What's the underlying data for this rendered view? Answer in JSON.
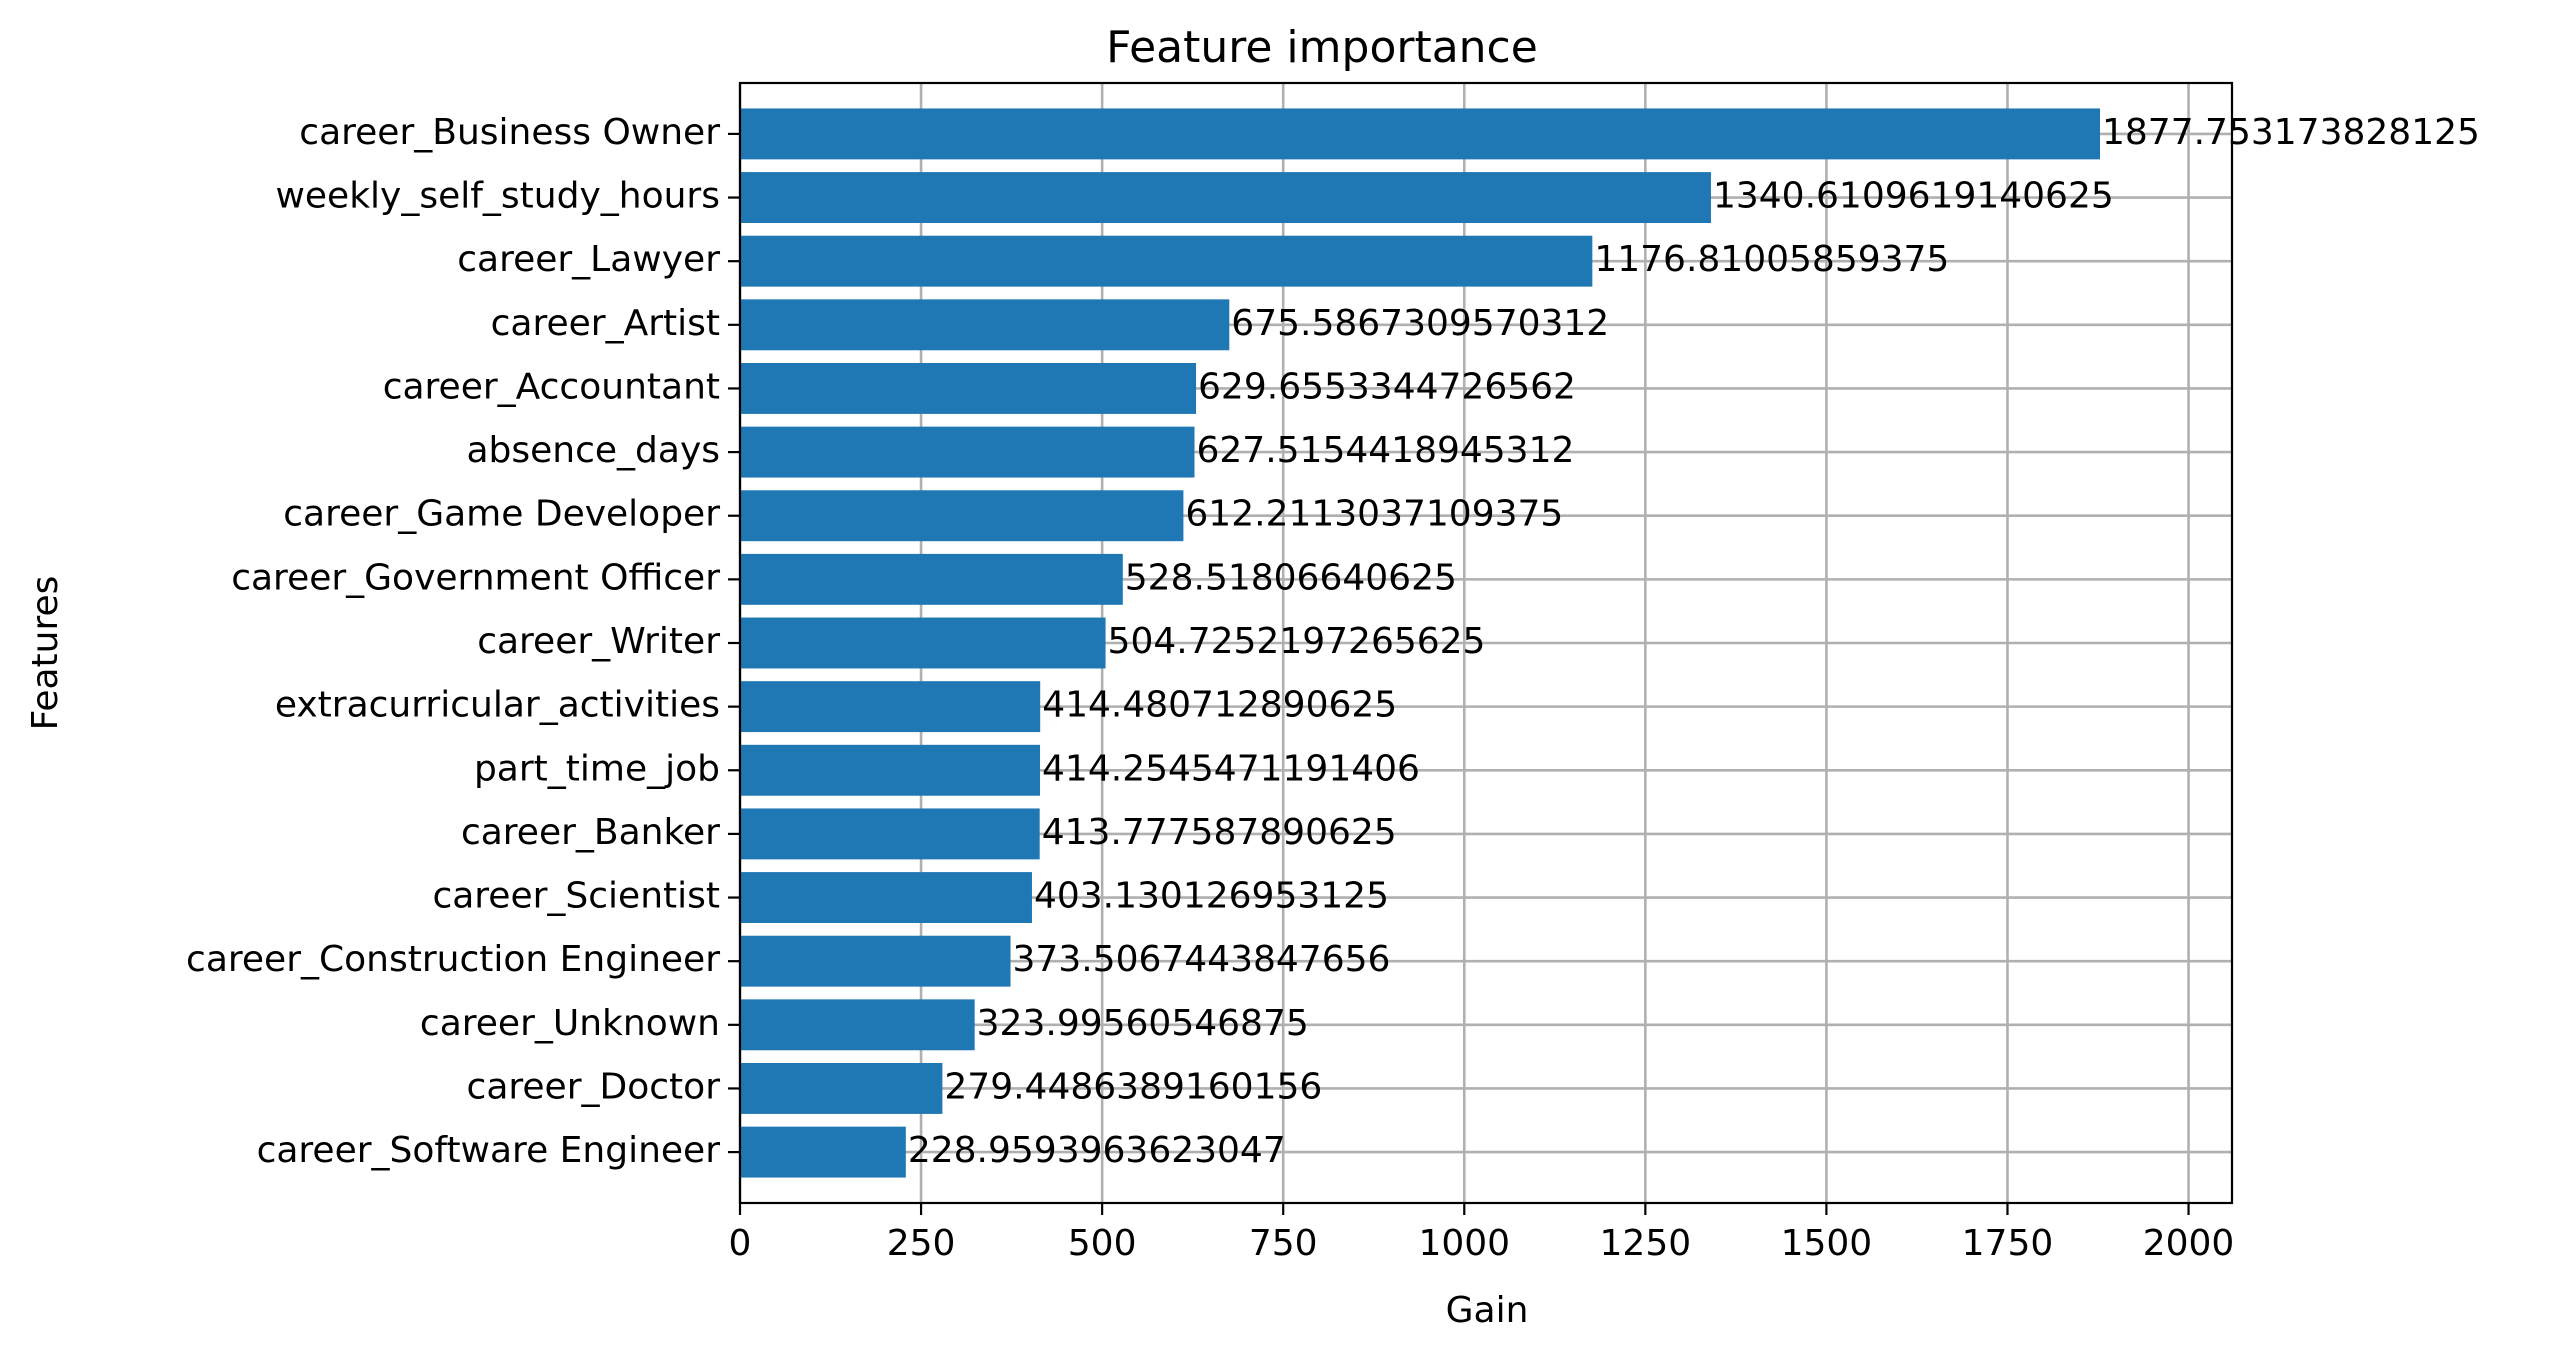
{
  "chart_data": {
    "type": "bar",
    "orientation": "horizontal",
    "title": "Feature importance",
    "xlabel": "Gain",
    "ylabel": "Features",
    "xlim": [
      0,
      2060
    ],
    "xticks": [
      0,
      250,
      500,
      750,
      1000,
      1250,
      1500,
      1750,
      2000
    ],
    "grid": true,
    "bar_color": "#1f77b4",
    "categories": [
      "career_Business Owner",
      "weekly_self_study_hours",
      "career_Lawyer",
      "career_Artist",
      "career_Accountant",
      "absence_days",
      "career_Game Developer",
      "career_Government Officer",
      "career_Writer",
      "extracurricular_activities",
      "part_time_job",
      "career_Banker",
      "career_Scientist",
      "career_Construction Engineer",
      "career_Unknown",
      "career_Doctor",
      "career_Software Engineer"
    ],
    "values": [
      1877.753173828125,
      1340.6109619140625,
      1176.81005859375,
      675.5867309570312,
      629.6553344726562,
      627.5154418945312,
      612.2113037109375,
      528.51806640625,
      504.7252197265625,
      414.480712890625,
      414.2545471191406,
      413.777587890625,
      403.130126953125,
      373.5067443847656,
      323.99560546875,
      279.4486389160156,
      228.9593963623047
    ],
    "data_labels": [
      "1877.753173828125",
      "1340.6109619140625",
      "1176.81005859375",
      "675.5867309570312",
      "629.6553344726562",
      "627.5154418945312",
      "612.2113037109375",
      "528.51806640625",
      "504.7252197265625",
      "414.480712890625",
      "414.2545471191406",
      "413.777587890625",
      "403.130126953125",
      "373.5067443847656",
      "323.99560546875",
      "279.4486389160156",
      "228.9593963623047"
    ]
  }
}
